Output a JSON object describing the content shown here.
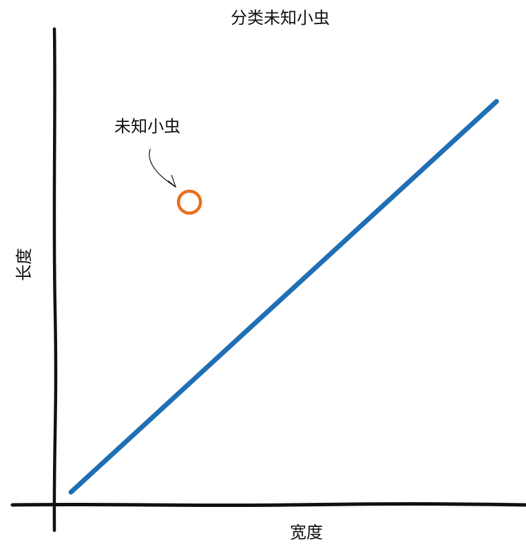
{
  "chart_data": {
    "type": "scatter",
    "title": "分类未知小虫",
    "xlabel": "宽度",
    "ylabel": "长度",
    "grid": false,
    "axis_ticks": false,
    "colors": {
      "line": "#1f6fb4",
      "point": "#e8701a",
      "axis": "#111111",
      "text": "#111111",
      "background": "#ffffff"
    },
    "line": {
      "name": "",
      "x": [
        0.03,
        1.0
      ],
      "y": [
        0.03,
        1.0
      ]
    },
    "point": {
      "x": 0.3,
      "y": 0.75,
      "marker": "hollow-circle"
    },
    "annotation": {
      "text": "未知小虫",
      "arrow_target": "point"
    },
    "xlim": [
      0,
      1.02
    ],
    "ylim": [
      0,
      1.18
    ]
  }
}
